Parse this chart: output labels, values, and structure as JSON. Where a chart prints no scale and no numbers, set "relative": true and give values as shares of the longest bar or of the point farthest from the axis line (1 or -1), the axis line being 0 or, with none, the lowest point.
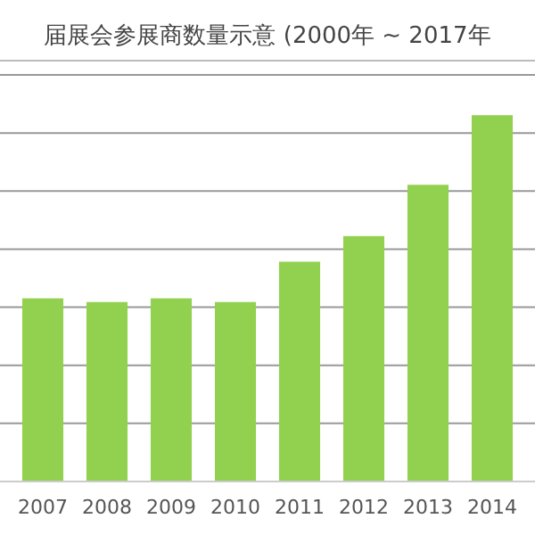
{
  "chart_data": {
    "type": "bar",
    "title": "届展会参展商数量示意 (2000年 ~ 2017年",
    "categories": [
      "2007",
      "2008",
      "2009",
      "2010",
      "2011",
      "2012",
      "2013",
      "2014"
    ],
    "values": [
      0.5,
      0.49,
      0.5,
      0.49,
      0.6,
      0.67,
      0.81,
      1
    ],
    "color": "#92d050",
    "relative": true,
    "grid": "y"
  }
}
